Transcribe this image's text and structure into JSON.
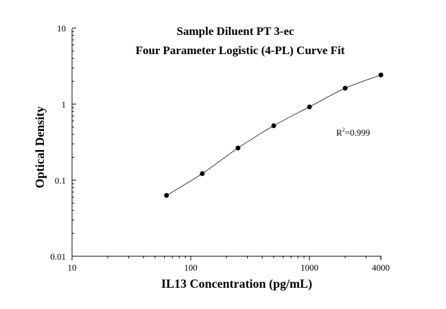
{
  "chart_data": {
    "type": "scatter",
    "title": "Sample Diluent PT 3-ec",
    "subtitle": "Four Parameter Logistic (4-PL) Curve Fit",
    "xlabel": "IL13 Concentration (pg/mL)",
    "ylabel": "Optical Density",
    "x_scale": "log",
    "y_scale": "log",
    "xlim": [
      10,
      4000
    ],
    "ylim": [
      0.01,
      10
    ],
    "x_tick_labels": [
      "10",
      "100",
      "1000",
      "4000"
    ],
    "y_tick_labels": [
      "10",
      "1",
      "0.1",
      "0.01"
    ],
    "annotation": {
      "prefix": "R",
      "superscript": "2",
      "suffix": "=0.999"
    },
    "grid": false,
    "series": [
      {
        "points": [
          {
            "x": 62.5,
            "y": 0.063
          },
          {
            "x": 125,
            "y": 0.122
          },
          {
            "x": 250,
            "y": 0.265
          },
          {
            "x": 500,
            "y": 0.52
          },
          {
            "x": 1000,
            "y": 0.92
          },
          {
            "x": 2000,
            "y": 1.62
          },
          {
            "x": 4000,
            "y": 2.42
          }
        ]
      }
    ]
  }
}
